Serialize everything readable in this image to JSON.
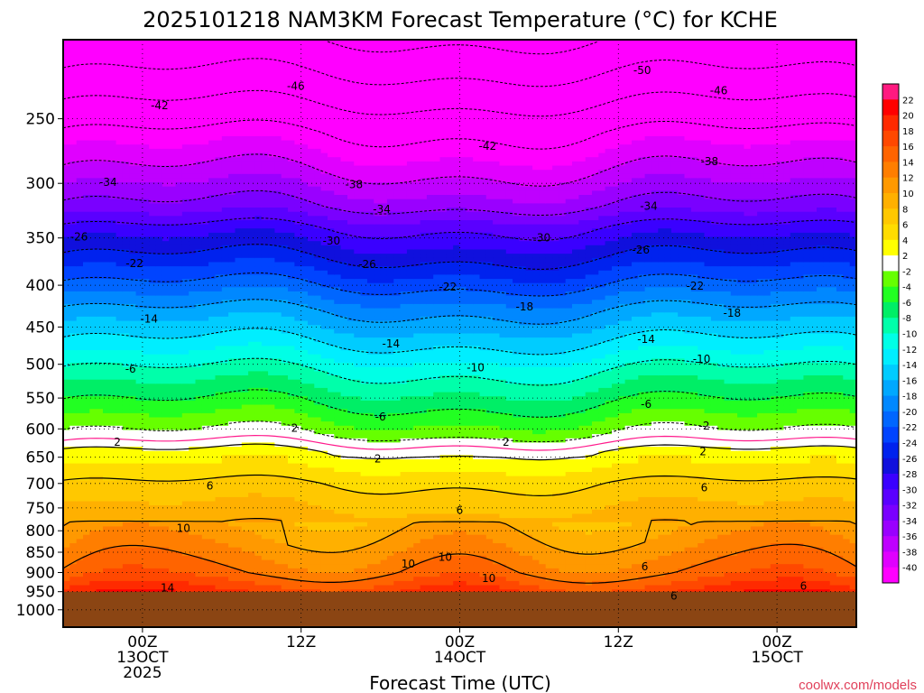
{
  "chart_data": {
    "type": "heatmap",
    "title": "2025101218 NAM3KM Forecast Temperature (°C) for KCHE",
    "xlabel": "Forecast Time (UTC)",
    "ylabel": "",
    "x_ticks": [
      {
        "t": 6,
        "lines": [
          "00Z",
          "13OCT",
          "2025"
        ]
      },
      {
        "t": 18,
        "lines": [
          "12Z"
        ]
      },
      {
        "t": 30,
        "lines": [
          "00Z",
          "14OCT"
        ]
      },
      {
        "t": 42,
        "lines": [
          "12Z"
        ]
      },
      {
        "t": 54,
        "lines": [
          "00Z",
          "15OCT"
        ]
      }
    ],
    "xlim": [
      0,
      60
    ],
    "ylim_hpa": [
      200,
      1050
    ],
    "y_ticks": [
      250,
      300,
      350,
      400,
      450,
      500,
      550,
      600,
      650,
      700,
      750,
      800,
      850,
      900,
      950,
      1000
    ],
    "surface_pressure_hpa": 950,
    "ground_color": "#8b4513",
    "freezing_band_color": "#ffffff",
    "colorbar": {
      "ticks": [
        22,
        20,
        18,
        16,
        14,
        12,
        10,
        8,
        6,
        4,
        2,
        -2,
        -4,
        -6,
        -8,
        -10,
        -12,
        -14,
        -16,
        -18,
        -20,
        -22,
        -24,
        -26,
        -28,
        -30,
        -32,
        -34,
        -36,
        -38,
        -40
      ],
      "colors": [
        "#ff1a80",
        "#ff0000",
        "#ff2a00",
        "#ff4800",
        "#ff6400",
        "#ff7e00",
        "#ff9900",
        "#ffb000",
        "#ffc800",
        "#ffdc00",
        "#ffff00",
        "#ffffff",
        "#66ff00",
        "#22ff22",
        "#00ee66",
        "#00ffaa",
        "#00ffe6",
        "#00eeff",
        "#00ccff",
        "#00a8ff",
        "#0088ff",
        "#0066ff",
        "#0044ff",
        "#0022ee",
        "#1010dd",
        "#3a00ff",
        "#5a00ff",
        "#7a00ff",
        "#9a00ff",
        "#bf00ff",
        "#e000ff",
        "#ff00ff"
      ]
    },
    "isotherm_profile": [
      {
        "p": 200,
        "t": -54
      },
      {
        "p": 230,
        "t": -48
      },
      {
        "p": 260,
        "t": -42
      },
      {
        "p": 290,
        "t": -38
      },
      {
        "p": 320,
        "t": -34
      },
      {
        "p": 340,
        "t": -30
      },
      {
        "p": 370,
        "t": -26
      },
      {
        "p": 400,
        "t": -22
      },
      {
        "p": 430,
        "t": -18
      },
      {
        "p": 470,
        "t": -14
      },
      {
        "p": 510,
        "t": -10
      },
      {
        "p": 560,
        "t": -6
      },
      {
        "p": 610,
        "t": -2
      },
      {
        "p": 640,
        "t": 2
      },
      {
        "p": 700,
        "t": 6
      },
      {
        "p": 800,
        "t": 10
      },
      {
        "p": 900,
        "t": 14
      }
    ],
    "isotherm_labels": [
      {
        "text": "-50",
        "t": 43.8,
        "p": 218
      },
      {
        "text": "-46",
        "t": 17.6,
        "p": 228
      },
      {
        "text": "-46",
        "t": 49.6,
        "p": 231
      },
      {
        "text": "-42",
        "t": 7.3,
        "p": 241
      },
      {
        "text": "-42",
        "t": 32.1,
        "p": 270
      },
      {
        "text": "-38",
        "t": 22.0,
        "p": 301
      },
      {
        "text": "-38",
        "t": 48.9,
        "p": 282
      },
      {
        "text": "-34",
        "t": 3.4,
        "p": 299
      },
      {
        "text": "-34",
        "t": 24.1,
        "p": 323
      },
      {
        "text": "-34",
        "t": 44.3,
        "p": 320
      },
      {
        "text": "-30",
        "t": 20.3,
        "p": 353
      },
      {
        "text": "-30",
        "t": 36.2,
        "p": 350
      },
      {
        "text": "-26",
        "t": 1.2,
        "p": 349
      },
      {
        "text": "-26",
        "t": 23.0,
        "p": 377
      },
      {
        "text": "-26",
        "t": 43.7,
        "p": 362
      },
      {
        "text": "-22",
        "t": 5.4,
        "p": 376
      },
      {
        "text": "-22",
        "t": 29.1,
        "p": 402
      },
      {
        "text": "-22",
        "t": 47.8,
        "p": 401
      },
      {
        "text": "-18",
        "t": 34.9,
        "p": 425
      },
      {
        "text": "-18",
        "t": 50.6,
        "p": 433
      },
      {
        "text": "-14",
        "t": 6.5,
        "p": 440
      },
      {
        "text": "-14",
        "t": 24.8,
        "p": 472
      },
      {
        "text": "-14",
        "t": 44.1,
        "p": 466
      },
      {
        "text": "-10",
        "t": 31.2,
        "p": 505
      },
      {
        "text": "-10",
        "t": 48.3,
        "p": 493
      },
      {
        "text": "-6",
        "t": 5.1,
        "p": 507
      },
      {
        "text": "-6",
        "t": 24.0,
        "p": 580
      },
      {
        "text": "-6",
        "t": 44.1,
        "p": 560
      },
      {
        "text": "-2",
        "t": 48.5,
        "p": 595
      },
      {
        "text": "2",
        "t": 4.1,
        "p": 623
      },
      {
        "text": "2",
        "t": 17.5,
        "p": 599
      },
      {
        "text": "2",
        "t": 23.8,
        "p": 653
      },
      {
        "text": "2",
        "t": 33.5,
        "p": 623
      },
      {
        "text": "2",
        "t": 48.4,
        "p": 640
      },
      {
        "text": "6",
        "t": 11.1,
        "p": 705
      },
      {
        "text": "6",
        "t": 30.0,
        "p": 755
      },
      {
        "text": "6",
        "t": 48.5,
        "p": 708
      },
      {
        "text": "6",
        "t": 44.0,
        "p": 885
      },
      {
        "text": "6",
        "t": 56.0,
        "p": 935
      },
      {
        "text": "6",
        "t": 46.2,
        "p": 962
      },
      {
        "text": "10",
        "t": 9.1,
        "p": 794
      },
      {
        "text": "10",
        "t": 26.1,
        "p": 878
      },
      {
        "text": "10",
        "t": 32.2,
        "p": 915
      },
      {
        "text": "10",
        "t": 28.9,
        "p": 862
      },
      {
        "text": "14",
        "t": 7.9,
        "p": 940
      }
    ],
    "rh_note": ""
  },
  "watermark": "coolwx.com/models"
}
